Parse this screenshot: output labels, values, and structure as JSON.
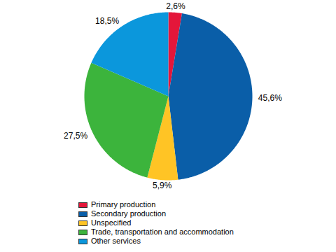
{
  "chart_data": {
    "type": "pie",
    "categories": [
      "Primary production",
      "Secondary production",
      "Unspecified",
      "Trade, transportation and accommodation",
      "Other services"
    ],
    "values": [
      2.6,
      45.6,
      5.9,
      27.5,
      18.5
    ],
    "value_labels": [
      "2,6%",
      "45,6%",
      "5,9%",
      "27,5%",
      "18,5%"
    ],
    "colors": [
      "#e4163a",
      "#0a5ea8",
      "#ffc425",
      "#3cb43c",
      "#0b97dc"
    ],
    "data_labels": true,
    "legend": "bottom"
  }
}
